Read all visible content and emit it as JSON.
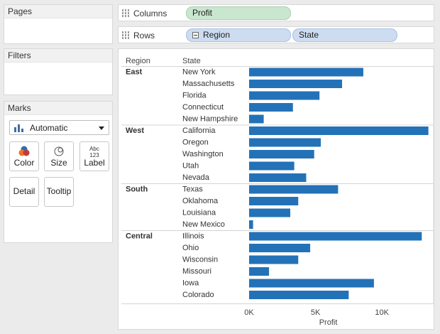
{
  "pages": {
    "title": "Pages"
  },
  "filters": {
    "title": "Filters"
  },
  "marks": {
    "title": "Marks",
    "mark_type": "Automatic",
    "buttons": {
      "color": "Color",
      "size": "Size",
      "label": "Label",
      "detail": "Detail",
      "tooltip": "Tooltip"
    },
    "label_icon_text": "Abc\n123"
  },
  "shelves": {
    "columns": {
      "name": "Columns",
      "pills": [
        "Profit"
      ]
    },
    "rows": {
      "name": "Rows",
      "pills": [
        "Region",
        "State"
      ]
    }
  },
  "colors": {
    "bar": "#2372b8",
    "pill_green": "#c9e6cf",
    "pill_blue": "#cddcf0"
  },
  "chart_data": {
    "type": "bar",
    "orientation": "horizontal",
    "row_headers": [
      "Region",
      "State"
    ],
    "xlabel": "Profit",
    "xlim": [
      0,
      14000
    ],
    "x_ticks": [
      {
        "value": 0,
        "label": "0K"
      },
      {
        "value": 5000,
        "label": "5K"
      },
      {
        "value": 10000,
        "label": "10K"
      }
    ],
    "groups": [
      {
        "region": "East",
        "states": [
          {
            "name": "New York",
            "value": 8600
          },
          {
            "name": "Massachusetts",
            "value": 7000
          },
          {
            "name": "Florida",
            "value": 5300
          },
          {
            "name": "Connecticut",
            "value": 3300
          },
          {
            "name": "New Hampshire",
            "value": 1100
          }
        ]
      },
      {
        "region": "West",
        "states": [
          {
            "name": "California",
            "value": 13500
          },
          {
            "name": "Oregon",
            "value": 5400
          },
          {
            "name": "Washington",
            "value": 4900
          },
          {
            "name": "Utah",
            "value": 3400
          },
          {
            "name": "Nevada",
            "value": 4300
          }
        ]
      },
      {
        "region": "South",
        "states": [
          {
            "name": "Texas",
            "value": 6700
          },
          {
            "name": "Oklahoma",
            "value": 3700
          },
          {
            "name": "Louisiana",
            "value": 3100
          },
          {
            "name": "New Mexico",
            "value": 300
          }
        ]
      },
      {
        "region": "Central",
        "states": [
          {
            "name": "Illinois",
            "value": 13000
          },
          {
            "name": "Ohio",
            "value": 4600
          },
          {
            "name": "Wisconsin",
            "value": 3700
          },
          {
            "name": "Missouri",
            "value": 1500
          },
          {
            "name": "Iowa",
            "value": 9400
          },
          {
            "name": "Colorado",
            "value": 7500
          }
        ]
      }
    ]
  }
}
